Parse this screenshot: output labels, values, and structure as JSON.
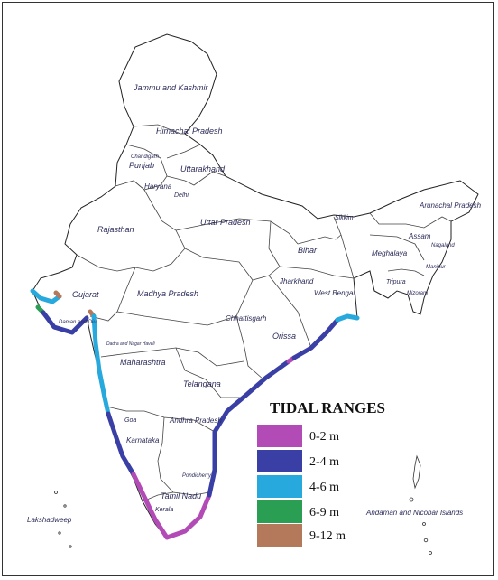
{
  "regions": {
    "jk": "Jammu and Kashmir",
    "hp": "Himachal Pradesh",
    "chd": "Chandigarh",
    "pb": "Punjab",
    "uk": "Uttarakhand",
    "hr": "Haryana",
    "dl": "Delhi",
    "rj": "Rajasthan",
    "up": "Uttar Pradesh",
    "sk": "Sikkim",
    "ar": "Arunachal Pradesh",
    "as": "Assam",
    "nl": "Nagaland",
    "ml": "Meghalaya",
    "mn": "Manipur",
    "tr": "Tripura",
    "mz": "Mizoram",
    "br": "Bihar",
    "jh": "Jharkhand",
    "wb": "West Bengal",
    "gj": "Gujarat",
    "dd": "Daman and Diu",
    "mp": "Madhya Pradesh",
    "cg": "Chhattisgarh",
    "or": "Orissa",
    "dnh": "Dadra and Nagar Haveli",
    "mh": "Maharashtra",
    "tg": "Telangana",
    "ap": "Andhra Pradesh",
    "ga": "Goa",
    "ka": "Karnataka",
    "py": "Pondicherry",
    "tn": "Tamil Nadu",
    "kl": "Kerala",
    "ld": "Lakshadweep",
    "an": "Andaman and Nicobar Islands"
  },
  "legend": {
    "title": "TIDAL RANGES",
    "items": [
      {
        "label": "0-2 m",
        "color": "#b24bb6"
      },
      {
        "label": "2-4 m",
        "color": "#3a3fa6"
      },
      {
        "label": "4-6 m",
        "color": "#27a9dd"
      },
      {
        "label": "6-9 m",
        "color": "#2a9e52"
      },
      {
        "label": "9-12 m",
        "color": "#b4795a"
      }
    ]
  }
}
